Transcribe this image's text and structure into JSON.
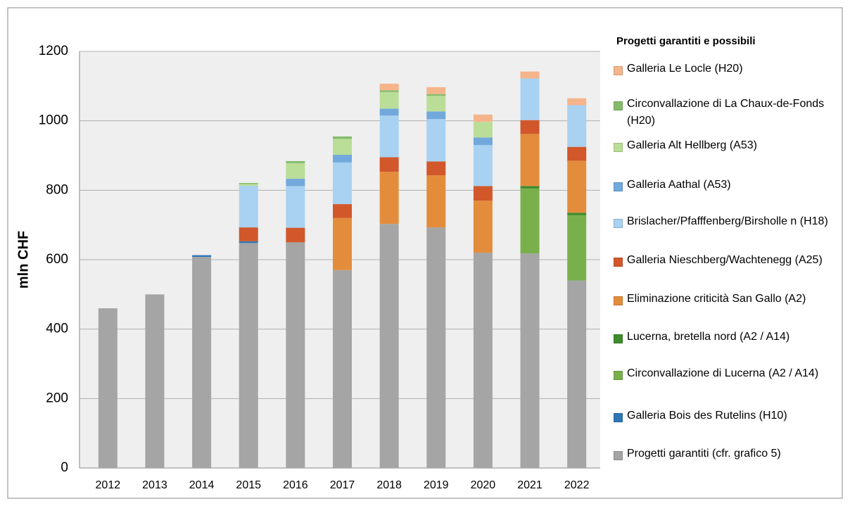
{
  "chart_data": {
    "type": "stacked_bar",
    "y_label": "mln CHF",
    "legend_title": "Progetti garantiti e possibili",
    "categories": [
      "2012",
      "2013",
      "2014",
      "2015",
      "2016",
      "2017",
      "2018",
      "2019",
      "2020",
      "2021",
      "2022"
    ],
    "ylim": [
      0,
      1200
    ],
    "yticks": [
      0,
      200,
      400,
      600,
      800,
      1000,
      1200
    ],
    "grid": true,
    "series": [
      {
        "name": "Progetti garantiti (cfr. grafico 5)",
        "color": "#a5a5a5",
        "values": [
          460,
          500,
          608,
          648,
          650,
          570,
          703,
          693,
          620,
          618,
          540
        ]
      },
      {
        "name": "Galleria Bois des Rutelins (H10)",
        "color": "#2e75b6",
        "values": [
          0,
          0,
          5,
          5,
          0,
          0,
          0,
          0,
          0,
          0,
          0
        ]
      },
      {
        "name": "Circonvallazione di Lucerna (A2 / A14)",
        "color": "#7ab04c",
        "values": [
          0,
          0,
          0,
          0,
          0,
          0,
          0,
          0,
          0,
          187,
          188
        ]
      },
      {
        "name": "Lucerna, bretella nord (A2 / A14)",
        "color": "#3e8c2c",
        "values": [
          0,
          0,
          0,
          0,
          0,
          0,
          0,
          0,
          0,
          7,
          7
        ]
      },
      {
        "name": "Eliminazione criticità San Gallo (A2)",
        "color": "#e38d3c",
        "values": [
          0,
          0,
          0,
          0,
          0,
          150,
          150,
          150,
          150,
          150,
          150
        ]
      },
      {
        "name": "Galleria Nieschberg/Wachtenegg (A25)",
        "color": "#d2572b",
        "values": [
          0,
          0,
          0,
          40,
          42,
          40,
          42,
          40,
          42,
          40,
          40
        ]
      },
      {
        "name": "Brislacher/Pfafffenberg/Birsholle n (H18)",
        "color": "#a9d1f1",
        "values": [
          0,
          0,
          0,
          120,
          120,
          120,
          120,
          122,
          118,
          120,
          120
        ]
      },
      {
        "name": "Galleria Aathal  (A53)",
        "color": "#72a9dc",
        "values": [
          0,
          0,
          0,
          0,
          21,
          22,
          20,
          22,
          22,
          0,
          0
        ]
      },
      {
        "name": "Galleria Alt Hellberg (A53)",
        "color": "#badd98",
        "values": [
          0,
          0,
          0,
          5,
          45,
          46,
          48,
          45,
          45,
          0,
          0
        ]
      },
      {
        "name": "Circonvallazione di La Chaux-de-Fonds (H20)",
        "color": "#84bc6b",
        "values": [
          0,
          0,
          0,
          3,
          6,
          7,
          5,
          5,
          0,
          0,
          0
        ]
      },
      {
        "name": "Galleria Le Locle (H20)",
        "color": "#f6b48b",
        "values": [
          0,
          0,
          0,
          0,
          0,
          0,
          19,
          20,
          21,
          20,
          20
        ]
      }
    ]
  }
}
